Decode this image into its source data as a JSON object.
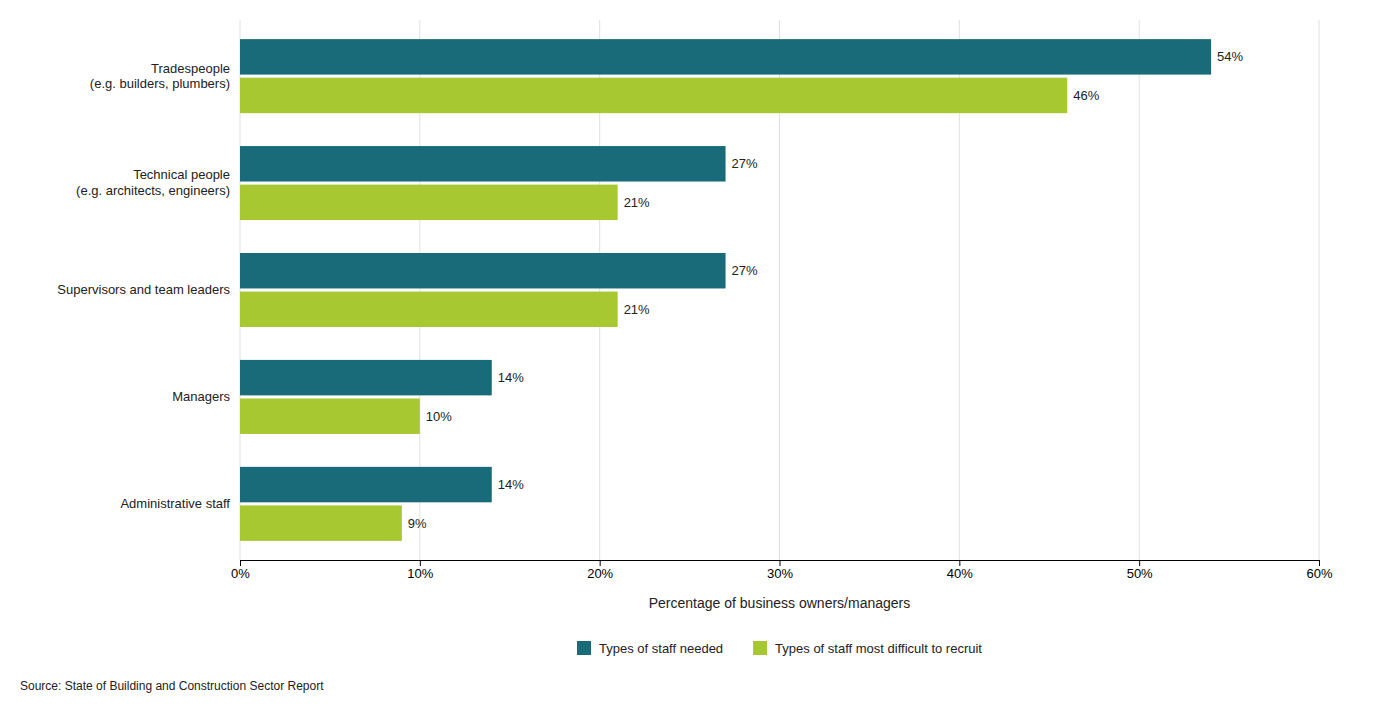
{
  "chart_data": {
    "type": "bar",
    "orientation": "horizontal",
    "categories": [
      "Administrative staff",
      "Managers",
      "Supervisors and team leaders",
      "Technical people\n(e.g. architects, engineers)",
      "Tradespeople\n(e.g. builders, plumbers)"
    ],
    "series": [
      {
        "name": "Types of staff needed",
        "color": "#1a6b7a",
        "values": [
          14,
          14,
          27,
          27,
          54
        ],
        "value_labels": [
          "14%",
          "14%",
          "27%",
          "27%",
          "54%"
        ]
      },
      {
        "name": "Types of staff most difficult to recruit",
        "color": "#a8c832",
        "values": [
          9,
          10,
          21,
          21,
          46
        ],
        "value_labels": [
          "9%",
          "10%",
          "21%",
          "21%",
          "46%"
        ]
      }
    ],
    "xlabel": "Percentage of business owners/managers",
    "xlim": [
      0,
      60
    ],
    "xticks": [
      {
        "value": 0,
        "label": "0%"
      },
      {
        "value": 10,
        "label": "10%"
      },
      {
        "value": 20,
        "label": "20%"
      },
      {
        "value": 30,
        "label": "30%"
      },
      {
        "value": 40,
        "label": "40%"
      },
      {
        "value": 50,
        "label": "50%"
      },
      {
        "value": 60,
        "label": "60%"
      }
    ],
    "grid": true,
    "data_labels": true,
    "legend": "bottom",
    "annotations": [
      "Source: State of Building and Construction Sector Report"
    ]
  }
}
